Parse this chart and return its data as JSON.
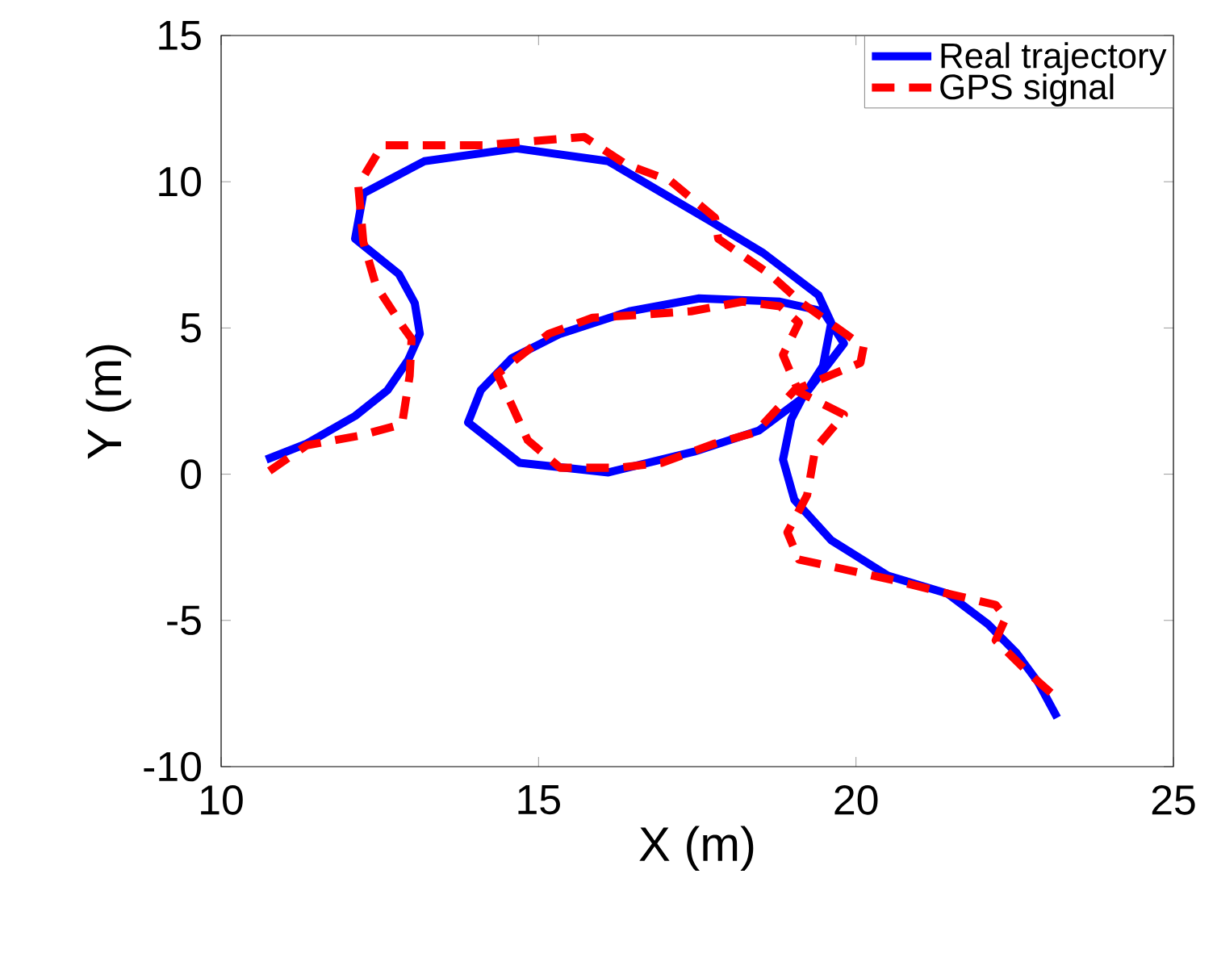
{
  "chart_data": {
    "type": "line",
    "xlabel": "X (m)",
    "ylabel": "Y (m)",
    "xlim": [
      10,
      25
    ],
    "ylim": [
      -10,
      15
    ],
    "xticks": [
      10,
      15,
      20,
      25
    ],
    "yticks": [
      -10,
      -5,
      0,
      5,
      10,
      15
    ],
    "grid": false,
    "legend": "top right",
    "marker": "none",
    "series": [
      {
        "name": "Real trajectory",
        "color": "#0000ff",
        "line_style": "solid",
        "x": [
          10.71,
          11.35,
          12.11,
          12.62,
          12.95,
          13.13,
          13.05,
          12.8,
          12.11,
          12.24,
          13.2,
          14.65,
          16.1,
          17.7,
          18.54,
          19.41,
          19.61,
          19.48,
          19.15,
          18.47,
          17.45,
          16.1,
          14.7,
          13.89,
          14.09,
          14.58,
          15.34,
          16.43,
          17.53,
          18.8,
          19.48,
          19.81,
          19.15,
          18.98,
          18.85,
          19.03,
          19.61,
          20.5,
          21.44,
          22.08,
          22.53,
          22.87,
          23.17
        ],
        "values": [
          0.5,
          1.05,
          1.99,
          2.87,
          3.92,
          4.8,
          5.85,
          6.84,
          8.05,
          9.6,
          10.7,
          11.14,
          10.7,
          8.66,
          7.56,
          6.12,
          5.18,
          3.7,
          2.59,
          1.49,
          0.77,
          0.06,
          0.39,
          1.77,
          2.87,
          3.97,
          4.8,
          5.57,
          6.01,
          5.9,
          5.57,
          4.47,
          2.59,
          1.88,
          0.5,
          -0.88,
          -2.26,
          -3.47,
          -4.08,
          -5.13,
          -6.12,
          -7.12,
          -8.33
        ]
      },
      {
        "name": "GPS signal",
        "color": "#ff0000",
        "line_style": "dashed",
        "x": [
          10.76,
          11.35,
          12.19,
          12.85,
          12.97,
          13.0,
          12.87,
          12.44,
          12.24,
          12.16,
          12.54,
          14.14,
          15.72,
          16.38,
          17.07,
          17.78,
          17.83,
          18.64,
          19.15,
          19.69,
          20.12,
          20.07,
          19.03,
          18.42,
          17.78,
          16.94,
          16.25,
          15.34,
          14.83,
          14.53,
          14.35,
          15.16,
          15.85,
          16.69,
          17.4,
          18.21,
          18.8,
          19.1,
          18.85,
          19.1,
          19.81,
          19.36,
          19.23,
          18.92,
          19.1,
          19.81,
          20.63,
          21.34,
          22.2,
          22.36,
          22.2,
          22.71,
          23.17
        ],
        "values": [
          0.11,
          0.99,
          1.32,
          1.71,
          3.36,
          4.63,
          5.02,
          6.45,
          7.94,
          9.87,
          11.25,
          11.25,
          11.53,
          10.59,
          10.04,
          8.77,
          8.05,
          6.84,
          5.85,
          5.02,
          4.36,
          3.81,
          2.87,
          1.43,
          1.05,
          0.39,
          0.22,
          0.22,
          1.16,
          2.59,
          3.42,
          4.8,
          5.35,
          5.46,
          5.57,
          5.9,
          5.74,
          5.18,
          4.08,
          2.81,
          2.04,
          0.88,
          -0.72,
          -1.99,
          -2.92,
          -3.25,
          -3.64,
          -4.03,
          -4.47,
          -4.91,
          -5.68,
          -6.78,
          -7.67
        ]
      }
    ]
  }
}
